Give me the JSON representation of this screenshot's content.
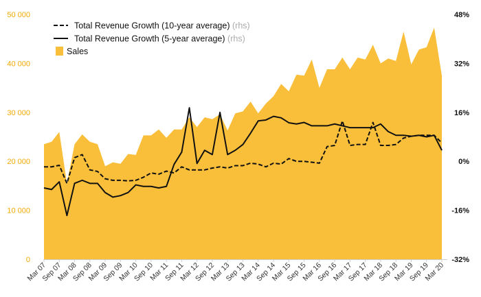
{
  "chart_data": {
    "type": "area",
    "title": "",
    "xlabel": "",
    "ylabel": "",
    "ylim": [
      0,
      50000
    ],
    "y2lim": [
      -32,
      48
    ],
    "grid": false,
    "legend_position": "top-left",
    "colors": {
      "sales": "#f9bf3b",
      "sales_axis": "#f2a900",
      "lines": "#111111"
    },
    "left_ticks": [
      "0",
      "10 000",
      "20 000",
      "30 000",
      "40 000",
      "50 000"
    ],
    "left_tick_values": [
      0,
      10000,
      20000,
      30000,
      40000,
      50000
    ],
    "right_ticks": [
      "-32%",
      "-16%",
      "0%",
      "16%",
      "32%",
      "48%"
    ],
    "right_tick_values": [
      -32,
      -16,
      0,
      16,
      32,
      48
    ],
    "x_ticks": [
      "Mar 07",
      "Sep 07",
      "Mar 08",
      "Sep 08",
      "Mar 09",
      "Sep 09",
      "Mar 10",
      "Sep 10",
      "Mar 11",
      "Sep 11",
      "Mar 12",
      "Sep 12",
      "Mar 13",
      "Sep 13",
      "Mar 14",
      "Sep 14",
      "Mar 15",
      "Sep 15",
      "Mar 16",
      "Sep 16",
      "Mar 17",
      "Sep 17",
      "Mar 18",
      "Sep 18",
      "Mar 19",
      "Sep 19",
      "Mar 20"
    ],
    "legend": {
      "ten_year": "Total Revenue Growth (10-year average)",
      "five_year": "Total Revenue Growth (5-year average)",
      "sales": "Sales",
      "rhs": "(rhs)"
    },
    "series": [
      {
        "name": "Sales",
        "axis": "left",
        "style": "area",
        "values": [
          23500,
          24000,
          26000,
          15500,
          23500,
          25500,
          24000,
          23500,
          19000,
          19800,
          19500,
          21500,
          21300,
          25300,
          25300,
          26500,
          24800,
          26500,
          26500,
          29000,
          27000,
          29000,
          28600,
          29600,
          26300,
          29800,
          30200,
          32200,
          29800,
          31800,
          33300,
          35800,
          34300,
          37700,
          37500,
          40800,
          35000,
          38800,
          38800,
          41200,
          38800,
          41200,
          40800,
          43800,
          40000,
          41000,
          40500,
          46500,
          39800,
          42800,
          43300,
          47300,
          37500
        ]
      },
      {
        "name": "Total Revenue Growth (10-year average)",
        "axis": "right",
        "style": "dashed",
        "values": [
          -1.8,
          -1.8,
          -1.3,
          -7.2,
          1.2,
          2.2,
          -2.8,
          -3.3,
          -5.7,
          -6.2,
          -6.2,
          -6.4,
          -6.2,
          -5.2,
          -3.8,
          -4.2,
          -3.2,
          -3.8,
          -1.8,
          -2.8,
          -2.8,
          -2.8,
          -2.2,
          -1.8,
          -2.2,
          -1.4,
          -1.4,
          -0.6,
          -0.9,
          -1.8,
          -0.6,
          -0.9,
          0.9,
          0.0,
          0.0,
          -0.3,
          -0.6,
          4.8,
          5.2,
          13.2,
          5.2,
          5.5,
          5.5,
          12.7,
          5.2,
          5.2,
          5.5,
          7.6,
          8.2,
          8.5,
          8.5,
          8.5,
          6.0
        ]
      },
      {
        "name": "Total Revenue Growth (5-year average)",
        "axis": "right",
        "style": "solid",
        "values": [
          -8.7,
          -9.2,
          -6.7,
          -17.7,
          -7.2,
          -6.2,
          -7.2,
          -7.2,
          -10.2,
          -11.7,
          -11.2,
          -10.2,
          -7.7,
          -8.2,
          -8.2,
          -8.7,
          -8.2,
          -1.0,
          3.0,
          17.5,
          -0.7,
          3.6,
          2.2,
          16.0,
          2.2,
          3.6,
          5.5,
          9.2,
          13.2,
          13.5,
          14.7,
          14.2,
          12.6,
          12.2,
          12.7,
          11.6,
          11.6,
          11.6,
          12.2,
          11.6,
          11.0,
          11.0,
          11.0,
          11.0,
          12.2,
          9.7,
          8.5,
          8.5,
          8.2,
          8.5,
          8.0,
          8.5,
          3.6
        ]
      }
    ]
  }
}
